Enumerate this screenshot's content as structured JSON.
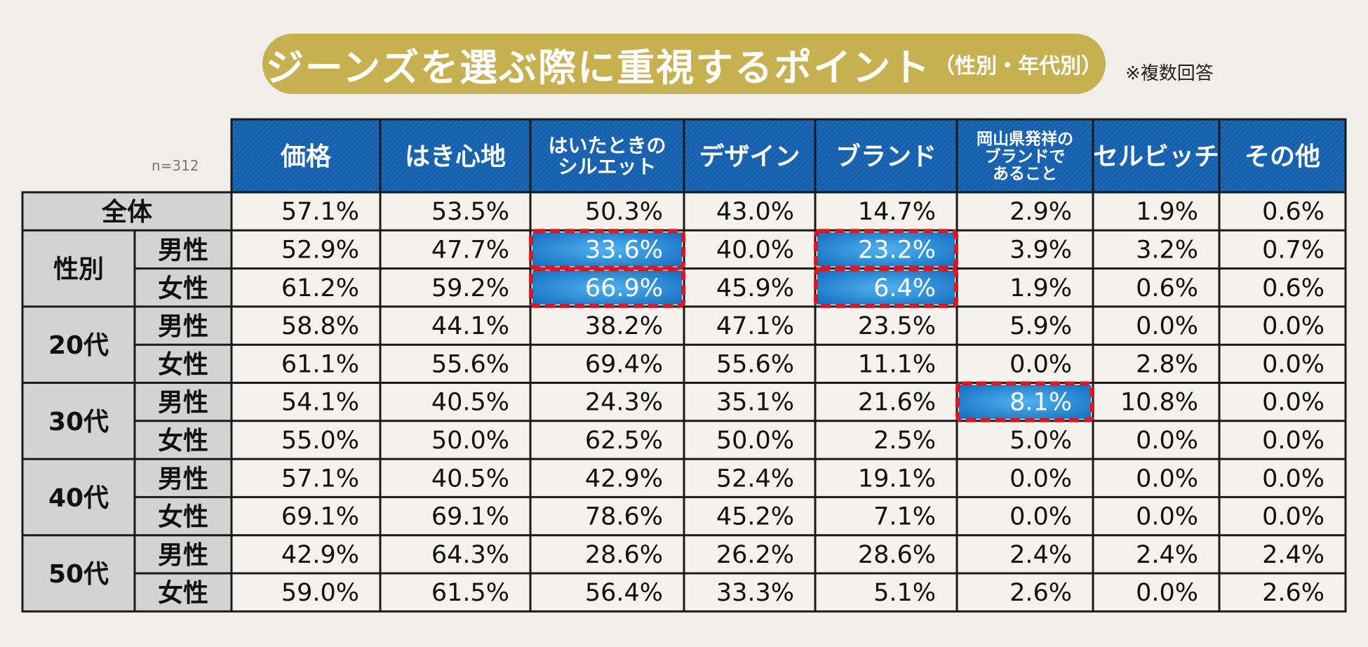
{
  "title": {
    "main": "ジーンズを選ぶ際に重視するポイント",
    "sub": "（性別・年代別）"
  },
  "note": "※複数回答",
  "sample": "n=312",
  "colors": {
    "title_bg": "#c7b04f",
    "header_bg": "#1b67b6",
    "highlight": "#2a8fd6",
    "highlight_border": "#e0161c",
    "row_header_bg": "#d3d3d3",
    "cell_bg": "#f5f2ee"
  },
  "chart_data": {
    "type": "table",
    "title": "ジーンズを選ぶ際に重視するポイント（性別・年代別）",
    "columns": [
      [
        "価格"
      ],
      [
        "はき心地"
      ],
      [
        "はいたときの",
        "シルエット"
      ],
      [
        "デザイン"
      ],
      [
        "ブランド"
      ],
      [
        "岡山県発祥の",
        "ブランドで",
        "あること"
      ],
      [
        "セルビッチ"
      ],
      [
        "その他"
      ]
    ],
    "rows": [
      {
        "group": "全体",
        "sub": "",
        "values": [
          "57.1%",
          "53.5%",
          "50.3%",
          "43.0%",
          "14.7%",
          "2.9%",
          "1.9%",
          "0.6%"
        ]
      },
      {
        "group": "性別",
        "sub": "男性",
        "values": [
          "52.9%",
          "47.7%",
          "33.6%",
          "40.0%",
          "23.2%",
          "3.9%",
          "3.2%",
          "0.7%"
        ]
      },
      {
        "group": "性別",
        "sub": "女性",
        "values": [
          "61.2%",
          "59.2%",
          "66.9%",
          "45.9%",
          "6.4%",
          "1.9%",
          "0.6%",
          "0.6%"
        ]
      },
      {
        "group": "20代",
        "sub": "男性",
        "values": [
          "58.8%",
          "44.1%",
          "38.2%",
          "47.1%",
          "23.5%",
          "5.9%",
          "0.0%",
          "0.0%"
        ]
      },
      {
        "group": "20代",
        "sub": "女性",
        "values": [
          "61.1%",
          "55.6%",
          "69.4%",
          "55.6%",
          "11.1%",
          "0.0%",
          "2.8%",
          "0.0%"
        ]
      },
      {
        "group": "30代",
        "sub": "男性",
        "values": [
          "54.1%",
          "40.5%",
          "24.3%",
          "35.1%",
          "21.6%",
          "8.1%",
          "10.8%",
          "0.0%"
        ]
      },
      {
        "group": "30代",
        "sub": "女性",
        "values": [
          "55.0%",
          "50.0%",
          "62.5%",
          "50.0%",
          "2.5%",
          "5.0%",
          "0.0%",
          "0.0%"
        ]
      },
      {
        "group": "40代",
        "sub": "男性",
        "values": [
          "57.1%",
          "40.5%",
          "42.9%",
          "52.4%",
          "19.1%",
          "0.0%",
          "0.0%",
          "0.0%"
        ]
      },
      {
        "group": "40代",
        "sub": "女性",
        "values": [
          "69.1%",
          "69.1%",
          "78.6%",
          "45.2%",
          "7.1%",
          "0.0%",
          "0.0%",
          "0.0%"
        ]
      },
      {
        "group": "50代",
        "sub": "男性",
        "values": [
          "42.9%",
          "64.3%",
          "28.6%",
          "26.2%",
          "28.6%",
          "2.4%",
          "2.4%",
          "2.4%"
        ]
      },
      {
        "group": "50代",
        "sub": "女性",
        "values": [
          "59.0%",
          "61.5%",
          "56.4%",
          "33.3%",
          "5.1%",
          "2.6%",
          "0.0%",
          "2.6%"
        ]
      }
    ],
    "highlights": [
      {
        "row": 1,
        "col": 2
      },
      {
        "row": 2,
        "col": 2
      },
      {
        "row": 1,
        "col": 4
      },
      {
        "row": 2,
        "col": 4
      },
      {
        "row": 5,
        "col": 5
      }
    ]
  }
}
